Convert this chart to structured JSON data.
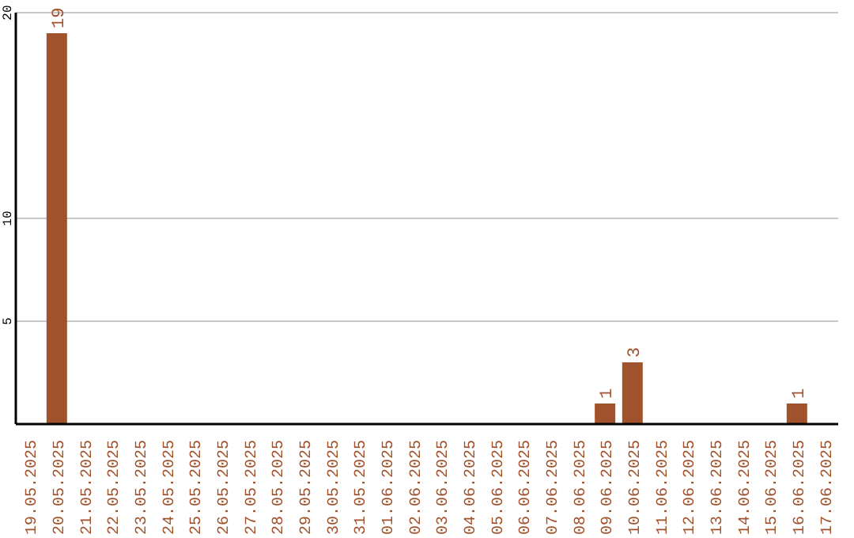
{
  "chart_data": {
    "type": "bar",
    "categories": [
      "19.05.2025",
      "20.05.2025",
      "21.05.2025",
      "22.05.2025",
      "23.05.2025",
      "24.05.2025",
      "25.05.2025",
      "26.05.2025",
      "27.05.2025",
      "28.05.2025",
      "29.05.2025",
      "30.05.2025",
      "31.05.2025",
      "01.06.2025",
      "02.06.2025",
      "03.06.2025",
      "04.06.2025",
      "05.06.2025",
      "06.06.2025",
      "07.06.2025",
      "08.06.2025",
      "09.06.2025",
      "10.06.2025",
      "11.06.2025",
      "12.06.2025",
      "13.06.2025",
      "14.06.2025",
      "15.06.2025",
      "16.06.2025",
      "17.06.2025"
    ],
    "values": [
      0,
      19,
      0,
      0,
      0,
      0,
      0,
      0,
      0,
      0,
      0,
      0,
      0,
      0,
      0,
      0,
      0,
      0,
      0,
      0,
      0,
      1,
      3,
      0,
      0,
      0,
      0,
      0,
      1,
      0
    ],
    "value_labels": [
      null,
      "19",
      null,
      null,
      null,
      null,
      null,
      null,
      null,
      null,
      null,
      null,
      null,
      null,
      null,
      null,
      null,
      null,
      null,
      null,
      null,
      "1",
      "3",
      null,
      null,
      null,
      null,
      null,
      "1",
      null
    ],
    "color": "#a0522d",
    "ylim": [
      0,
      20
    ],
    "yticks": [
      5,
      10,
      20
    ],
    "grid": "y"
  }
}
